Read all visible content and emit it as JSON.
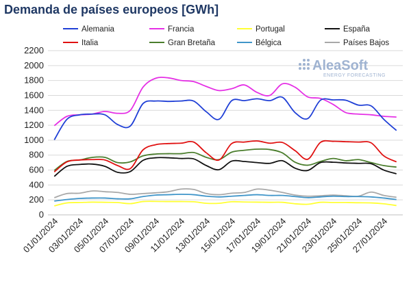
{
  "chart_data": {
    "type": "line",
    "title": "Demanda de países europeos [GWh]",
    "xlabel": "",
    "ylabel": "",
    "ylim": [
      0,
      2200
    ],
    "yticks": [
      0,
      200,
      400,
      600,
      800,
      1000,
      1200,
      1400,
      1600,
      1800,
      2000,
      2200
    ],
    "grid": true,
    "legend_position": "top",
    "x": [
      "01/01/2024",
      "02/01/2024",
      "03/01/2024",
      "04/01/2024",
      "05/01/2024",
      "06/01/2024",
      "07/01/2024",
      "08/01/2024",
      "09/01/2024",
      "10/01/2024",
      "11/01/2024",
      "12/01/2024",
      "13/01/2024",
      "14/01/2024",
      "15/01/2024",
      "16/01/2024",
      "17/01/2024",
      "18/01/2024",
      "19/01/2024",
      "20/01/2024",
      "21/01/2024",
      "22/01/2024",
      "23/01/2024",
      "24/01/2024",
      "25/01/2024",
      "26/01/2024",
      "27/01/2024",
      "28/01/2024"
    ],
    "xtick_labels": [
      "01/01/2024",
      "03/01/2024",
      "05/01/2024",
      "07/01/2024",
      "09/01/2024",
      "11/01/2024",
      "13/01/2024",
      "15/01/2024",
      "17/01/2024",
      "19/01/2024",
      "21/01/2024",
      "23/01/2024",
      "25/01/2024",
      "27/01/2024"
    ],
    "series": [
      {
        "name": "Alemania",
        "color": "#1f3fd6",
        "values": [
          1005,
          1280,
          1340,
          1350,
          1340,
          1210,
          1190,
          1490,
          1525,
          1520,
          1525,
          1525,
          1380,
          1280,
          1530,
          1530,
          1555,
          1530,
          1575,
          1370,
          1290,
          1535,
          1540,
          1535,
          1470,
          1460,
          1280,
          1130
        ]
      },
      {
        "name": "Francia",
        "color": "#e52fe5",
        "values": [
          1195,
          1320,
          1340,
          1350,
          1385,
          1360,
          1400,
          1710,
          1830,
          1835,
          1800,
          1785,
          1720,
          1665,
          1690,
          1740,
          1640,
          1600,
          1755,
          1710,
          1580,
          1560,
          1480,
          1370,
          1350,
          1340,
          1320,
          1310
        ]
      },
      {
        "name": "Portugal",
        "color": "#ffff33",
        "values": [
          120,
          160,
          165,
          170,
          168,
          165,
          150,
          178,
          180,
          178,
          178,
          175,
          155,
          155,
          175,
          172,
          170,
          168,
          168,
          148,
          142,
          168,
          165,
          165,
          162,
          160,
          148,
          125
        ]
      },
      {
        "name": "España",
        "color": "#111111",
        "values": [
          515,
          650,
          675,
          680,
          650,
          570,
          580,
          730,
          765,
          765,
          755,
          750,
          660,
          605,
          720,
          715,
          700,
          690,
          725,
          625,
          595,
          700,
          705,
          695,
          690,
          685,
          600,
          550
        ]
      },
      {
        "name": "Italia",
        "color": "#e01010",
        "values": [
          575,
          710,
          735,
          740,
          735,
          660,
          620,
          870,
          940,
          955,
          960,
          975,
          830,
          735,
          955,
          975,
          990,
          960,
          970,
          860,
          745,
          970,
          985,
          980,
          975,
          965,
          790,
          710
        ]
      },
      {
        "name": "Gran Bretaña",
        "color": "#4a7d2c",
        "values": [
          595,
          715,
          735,
          770,
          770,
          700,
          710,
          790,
          815,
          820,
          820,
          835,
          770,
          740,
          840,
          865,
          880,
          875,
          830,
          705,
          665,
          715,
          755,
          725,
          740,
          700,
          660,
          640
        ]
      },
      {
        "name": "Bélgica",
        "color": "#3f95c9",
        "values": [
          185,
          205,
          220,
          225,
          225,
          215,
          215,
          245,
          265,
          270,
          275,
          270,
          250,
          240,
          250,
          260,
          270,
          260,
          260,
          245,
          230,
          240,
          250,
          245,
          245,
          240,
          225,
          205
        ]
      },
      {
        "name": "Países Bajos",
        "color": "#a8a8a8",
        "values": [
          230,
          285,
          290,
          320,
          310,
          300,
          275,
          285,
          295,
          310,
          345,
          340,
          285,
          270,
          290,
          300,
          345,
          330,
          300,
          265,
          250,
          255,
          265,
          255,
          250,
          305,
          260,
          235
        ]
      }
    ]
  },
  "logo": {
    "name": "AleaSoft",
    "tagline": "ENERGY FORECASTING"
  }
}
